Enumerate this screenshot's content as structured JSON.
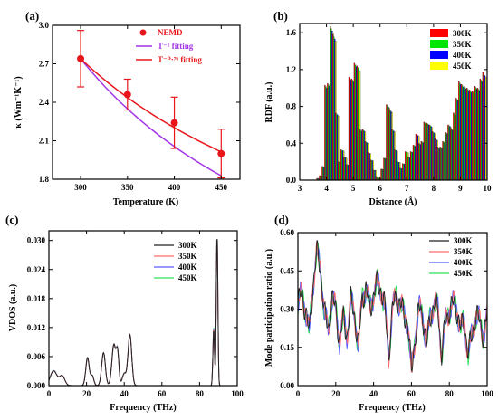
{
  "chart_data": [
    {
      "panel_label": "(a)",
      "type": "line",
      "xlabel": "Temperature (K)",
      "ylabel": "κ (Wm⁻¹K⁻¹)",
      "xlim": [
        270,
        470
      ],
      "ylim": [
        1.8,
        3.0
      ],
      "xticks": [
        300,
        350,
        400,
        450
      ],
      "yticks": [
        1.8,
        2.1,
        2.4,
        2.7,
        3.0
      ],
      "ytick_labels": [
        "1.8",
        "2.1",
        "2.4",
        "2.7",
        "3.0"
      ],
      "legend_position": "top-right",
      "series": [
        {
          "name": "NEMD",
          "style": "points",
          "color": "#e8161b",
          "x": [
            300,
            350,
            400,
            450
          ],
          "y": [
            2.74,
            2.46,
            2.24,
            2.0
          ],
          "err": [
            0.22,
            0.12,
            0.2,
            0.19
          ]
        },
        {
          "name": "T⁻¹ fitting",
          "style": "curve",
          "color": "#a335e6",
          "x": [
            300,
            450
          ],
          "exponent": -1.0,
          "y0": 2.74
        },
        {
          "name": "T⁻⁰·⁷⁶ fitting",
          "style": "curve",
          "color": "#e8161b",
          "x": [
            300,
            450
          ],
          "exponent": -0.76,
          "y0": 2.74
        }
      ]
    },
    {
      "panel_label": "(b)",
      "type": "bar",
      "xlabel": "Distance (Å)",
      "ylabel": "RDF (a.u.)",
      "xlim": [
        3,
        10
      ],
      "ylim": [
        0,
        1.7
      ],
      "xticks": [
        3,
        4,
        5,
        6,
        7,
        8,
        9,
        10
      ],
      "yticks": [
        0.0,
        0.4,
        0.8,
        1.2,
        1.6
      ],
      "ytick_labels": [
        "0.0",
        "0.4",
        "0.8",
        "1.2",
        "1.6"
      ],
      "legend_position": "top-right",
      "series_names": [
        "300K",
        "350K",
        "400K",
        "450K"
      ],
      "colors": [
        "#ff0000",
        "#00e600",
        "#0000ff",
        "#ffff00"
      ],
      "x": [
        3.7,
        3.8,
        3.9,
        4.0,
        4.1,
        4.2,
        4.3,
        4.4,
        4.5,
        4.6,
        4.7,
        4.8,
        4.9,
        5.0,
        5.1,
        5.2,
        5.3,
        5.4,
        5.5,
        5.6,
        5.7,
        5.8,
        5.9,
        6.0,
        6.1,
        6.2,
        6.3,
        6.4,
        6.5,
        6.6,
        6.7,
        6.8,
        6.9,
        7.0,
        7.1,
        7.2,
        7.3,
        7.4,
        7.5,
        7.6,
        7.7,
        7.8,
        7.9,
        8.0,
        8.1,
        8.2,
        8.3,
        8.4,
        8.5,
        8.6,
        8.7,
        8.8,
        8.9,
        9.0,
        9.1,
        9.2,
        9.3,
        9.4,
        9.5,
        9.6,
        9.7,
        9.8,
        9.9
      ],
      "values": [
        0.02,
        0.05,
        0.15,
        1.03,
        1.05,
        1.67,
        1.58,
        0.73,
        0.2,
        0.33,
        0.25,
        0.17,
        1.12,
        1.1,
        1.27,
        1.24,
        0.55,
        0.55,
        0.42,
        0.3,
        0.22,
        0.11,
        0.04,
        0.02,
        0.12,
        0.24,
        0.82,
        0.77,
        0.55,
        0.33,
        0.2,
        0.13,
        0.18,
        0.31,
        0.25,
        0.31,
        0.38,
        0.5,
        0.4,
        0.42,
        0.63,
        0.62,
        0.6,
        0.53,
        0.45,
        0.36,
        0.36,
        0.42,
        0.52,
        0.6,
        0.56,
        0.73,
        0.89,
        1.07,
        1.04,
        1.02,
        1.0,
        0.98,
        0.97,
        1.02,
        1.0,
        1.1,
        1.17
      ]
    },
    {
      "panel_label": "(c)",
      "type": "line",
      "xlabel": "Frequency (THz)",
      "ylabel": "VDOS (a.u.)",
      "xlim": [
        0,
        100
      ],
      "ylim": [
        0,
        0.032
      ],
      "xticks": [
        0,
        20,
        40,
        60,
        80,
        100
      ],
      "yticks": [
        0.0,
        0.006,
        0.012,
        0.018,
        0.024,
        0.03
      ],
      "ytick_labels": [
        "0.000",
        "0.006",
        "0.012",
        "0.018",
        "0.024",
        "0.030"
      ],
      "legend_position": "top-right",
      "series_names": [
        "300K",
        "350K",
        "400K",
        "450K"
      ],
      "colors": [
        "#222222",
        "#ff6b6b",
        "#5a5aff",
        "#2ee05a"
      ],
      "peaks": [
        {
          "x": 2.5,
          "y": 0.003,
          "w": 2.5
        },
        {
          "x": 7,
          "y": 0.002,
          "w": 2
        },
        {
          "x": 20.5,
          "y": 0.0058,
          "w": 1.3
        },
        {
          "x": 23,
          "y": 0.002,
          "w": 1.2
        },
        {
          "x": 29,
          "y": 0.0068,
          "w": 1.4
        },
        {
          "x": 34.5,
          "y": 0.0085,
          "w": 1.5
        },
        {
          "x": 36.5,
          "y": 0.0062,
          "w": 1.0
        },
        {
          "x": 43,
          "y": 0.0105,
          "w": 1.4
        },
        {
          "x": 40,
          "y": 0.0025,
          "w": 1.5
        },
        {
          "x": 87.5,
          "y": 0.0115,
          "w": 0.6
        },
        {
          "x": 89.3,
          "y": 0.031,
          "w": 0.6
        }
      ]
    },
    {
      "panel_label": "(d)",
      "type": "line",
      "xlabel": "Frequency (THz)",
      "ylabel": "Mode participation ratio (a.u.)",
      "xlim": [
        0,
        100
      ],
      "ylim": [
        0,
        0.6
      ],
      "xticks": [
        0,
        20,
        40,
        60,
        80,
        100
      ],
      "yticks": [
        0.0,
        0.15,
        0.3,
        0.45,
        0.6
      ],
      "ytick_labels": [
        "0.00",
        "0.15",
        "0.30",
        "0.45",
        "0.60"
      ],
      "legend_position": "top-right",
      "series_names": [
        "300K",
        "350K",
        "400K",
        "450K"
      ],
      "colors": [
        "#222222",
        "#ff6b6b",
        "#5a5aff",
        "#2ee05a"
      ],
      "x": [
        0,
        2,
        4,
        6,
        8,
        10,
        12,
        14,
        16,
        18,
        20,
        22,
        24,
        26,
        28,
        30,
        32,
        34,
        36,
        38,
        40,
        42,
        44,
        46,
        48,
        50,
        52,
        54,
        56,
        58,
        60,
        62,
        64,
        66,
        68,
        70,
        72,
        74,
        76,
        78,
        80,
        82,
        84,
        86,
        88,
        90,
        92,
        94,
        96,
        98,
        100
      ],
      "values": [
        0.32,
        0.36,
        0.3,
        0.2,
        0.4,
        0.52,
        0.46,
        0.28,
        0.22,
        0.34,
        0.3,
        0.18,
        0.26,
        0.2,
        0.33,
        0.28,
        0.15,
        0.35,
        0.38,
        0.3,
        0.36,
        0.4,
        0.38,
        0.3,
        0.12,
        0.3,
        0.35,
        0.32,
        0.28,
        0.25,
        0.05,
        0.2,
        0.3,
        0.28,
        0.15,
        0.28,
        0.32,
        0.3,
        0.12,
        0.25,
        0.3,
        0.32,
        0.3,
        0.22,
        0.25,
        0.12,
        0.2,
        0.28,
        0.25,
        0.2,
        0.27
      ]
    }
  ]
}
